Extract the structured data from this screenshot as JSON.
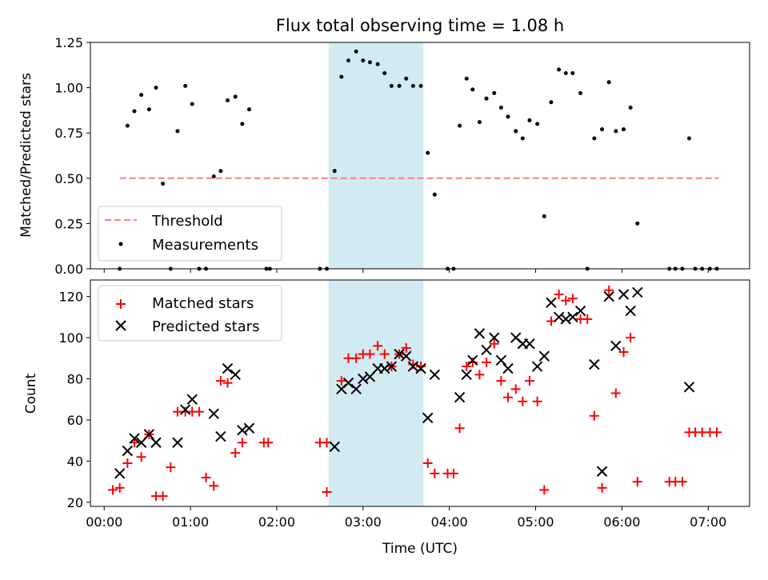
{
  "title": "Flux total observing time = 1.08 h",
  "shaded_region": {
    "x_start_h": 2.6,
    "x_end_h": 3.7,
    "color": "#add8e6"
  },
  "chart_data": [
    {
      "type": "scatter",
      "ylabel": "Matched/Predicted stars",
      "ylim": [
        0,
        1.25
      ],
      "xlim_h": [
        -0.16,
        7.48
      ],
      "yticks": [
        "0.00",
        "0.25",
        "0.50",
        "0.75",
        "1.00",
        "1.25"
      ],
      "legend": {
        "placement": "lower-left",
        "entries": [
          "Threshold",
          "Measurements"
        ]
      },
      "threshold": {
        "name": "Threshold",
        "y": 0.5,
        "x_from_h": 0.18,
        "x_to_h": 7.12,
        "color": "#ff7f7f"
      },
      "series": [
        {
          "name": "Measurements",
          "color": "#000000",
          "points": [
            [
              0.18,
              0
            ],
            [
              0.27,
              0.79
            ],
            [
              0.35,
              0.87
            ],
            [
              0.43,
              0.96
            ],
            [
              0.52,
              0.88
            ],
            [
              0.6,
              1.0
            ],
            [
              0.68,
              0.47
            ],
            [
              0.77,
              0
            ],
            [
              0.85,
              0.76
            ],
            [
              0.94,
              1.01
            ],
            [
              1.02,
              0.91
            ],
            [
              1.1,
              0
            ],
            [
              1.18,
              0
            ],
            [
              1.27,
              0.51
            ],
            [
              1.35,
              0.54
            ],
            [
              1.43,
              0.93
            ],
            [
              1.52,
              0.95
            ],
            [
              1.6,
              0.8
            ],
            [
              1.68,
              0.88
            ],
            [
              1.88,
              0
            ],
            [
              1.92,
              0
            ],
            [
              2.5,
              0
            ],
            [
              2.58,
              0
            ],
            [
              2.67,
              0.54
            ],
            [
              2.75,
              1.06
            ],
            [
              2.83,
              1.15
            ],
            [
              2.92,
              1.2
            ],
            [
              3.0,
              1.15
            ],
            [
              3.08,
              1.14
            ],
            [
              3.17,
              1.13
            ],
            [
              3.25,
              1.08
            ],
            [
              3.33,
              1.01
            ],
            [
              3.42,
              1.01
            ],
            [
              3.5,
              1.05
            ],
            [
              3.58,
              1.01
            ],
            [
              3.67,
              1.01
            ],
            [
              3.75,
              0.64
            ],
            [
              3.83,
              0.41
            ],
            [
              3.98,
              0
            ],
            [
              4.05,
              0
            ],
            [
              4.12,
              0.79
            ],
            [
              4.2,
              1.05
            ],
            [
              4.27,
              0.99
            ],
            [
              4.35,
              0.81
            ],
            [
              4.43,
              0.94
            ],
            [
              4.52,
              0.97
            ],
            [
              4.6,
              0.89
            ],
            [
              4.68,
              0.84
            ],
            [
              4.77,
              0.76
            ],
            [
              4.85,
              0.72
            ],
            [
              4.93,
              0.82
            ],
            [
              5.02,
              0.8
            ],
            [
              5.1,
              0.29
            ],
            [
              5.18,
              0.92
            ],
            [
              5.27,
              1.1
            ],
            [
              5.35,
              1.08
            ],
            [
              5.43,
              1.08
            ],
            [
              5.52,
              0.97
            ],
            [
              5.6,
              0
            ],
            [
              5.68,
              0.72
            ],
            [
              5.77,
              0.77
            ],
            [
              5.85,
              1.03
            ],
            [
              5.93,
              0.76
            ],
            [
              6.02,
              0.77
            ],
            [
              6.1,
              0.89
            ],
            [
              6.18,
              0.25
            ],
            [
              6.55,
              0
            ],
            [
              6.62,
              0
            ],
            [
              6.7,
              0
            ],
            [
              6.78,
              0.72
            ],
            [
              6.85,
              0
            ],
            [
              6.93,
              0
            ],
            [
              7.02,
              0
            ],
            [
              7.1,
              0
            ]
          ]
        }
      ]
    },
    {
      "type": "scatter",
      "xlabel": "Time (UTC)",
      "ylabel": "Count",
      "ylim": [
        18,
        128
      ],
      "xlim_h": [
        -0.16,
        7.48
      ],
      "yticks": [
        "20",
        "40",
        "60",
        "80",
        "100",
        "120"
      ],
      "xticks": [
        "00:00",
        "01:00",
        "02:00",
        "03:00",
        "04:00",
        "05:00",
        "06:00",
        "07:00"
      ],
      "legend": {
        "placement": "upper-left",
        "entries": [
          "Matched stars",
          "Predicted stars"
        ]
      },
      "series": [
        {
          "name": "Matched stars",
          "marker": "plus",
          "color": "#ff0000",
          "points": [
            [
              0.1,
              26
            ],
            [
              0.18,
              27
            ],
            [
              0.27,
              39
            ],
            [
              0.35,
              49
            ],
            [
              0.43,
              42
            ],
            [
              0.52,
              53
            ],
            [
              0.6,
              23
            ],
            [
              0.68,
              23
            ],
            [
              0.77,
              37
            ],
            [
              0.85,
              64
            ],
            [
              0.94,
              64
            ],
            [
              1.02,
              64
            ],
            [
              1.1,
              64
            ],
            [
              1.18,
              32
            ],
            [
              1.27,
              28
            ],
            [
              1.35,
              79
            ],
            [
              1.43,
              78
            ],
            [
              1.52,
              44
            ],
            [
              1.6,
              49
            ],
            [
              1.85,
              49
            ],
            [
              1.9,
              49
            ],
            [
              2.5,
              49
            ],
            [
              2.58,
              49
            ],
            [
              2.58,
              25
            ],
            [
              2.75,
              79
            ],
            [
              2.83,
              90
            ],
            [
              2.92,
              90
            ],
            [
              3.0,
              92
            ],
            [
              3.08,
              92
            ],
            [
              3.17,
              96
            ],
            [
              3.25,
              92
            ],
            [
              3.33,
              86
            ],
            [
              3.42,
              92
            ],
            [
              3.5,
              95
            ],
            [
              3.58,
              87
            ],
            [
              3.67,
              86
            ],
            [
              3.75,
              39
            ],
            [
              3.83,
              34
            ],
            [
              3.98,
              34
            ],
            [
              4.05,
              34
            ],
            [
              4.12,
              56
            ],
            [
              4.2,
              86
            ],
            [
              4.27,
              88
            ],
            [
              4.35,
              82
            ],
            [
              4.43,
              88
            ],
            [
              4.52,
              97
            ],
            [
              4.6,
              79
            ],
            [
              4.68,
              71
            ],
            [
              4.77,
              75
            ],
            [
              4.85,
              69
            ],
            [
              4.93,
              79
            ],
            [
              5.02,
              69
            ],
            [
              5.1,
              26
            ],
            [
              5.18,
              108
            ],
            [
              5.27,
              121
            ],
            [
              5.35,
              118
            ],
            [
              5.43,
              119
            ],
            [
              5.52,
              109
            ],
            [
              5.6,
              109
            ],
            [
              5.68,
              62
            ],
            [
              5.77,
              27
            ],
            [
              5.85,
              123
            ],
            [
              5.93,
              73
            ],
            [
              6.02,
              93
            ],
            [
              6.1,
              100
            ],
            [
              6.18,
              30
            ],
            [
              6.55,
              30
            ],
            [
              6.62,
              30
            ],
            [
              6.7,
              30
            ],
            [
              6.78,
              54
            ],
            [
              6.85,
              54
            ],
            [
              6.93,
              54
            ],
            [
              7.02,
              54
            ],
            [
              7.1,
              54
            ]
          ]
        },
        {
          "name": "Predicted stars",
          "marker": "x",
          "color": "#000000",
          "points": [
            [
              0.18,
              34
            ],
            [
              0.27,
              45
            ],
            [
              0.35,
              51
            ],
            [
              0.43,
              49
            ],
            [
              0.52,
              53
            ],
            [
              0.6,
              49
            ],
            [
              0.85,
              49
            ],
            [
              0.94,
              65
            ],
            [
              1.02,
              70
            ],
            [
              1.27,
              63
            ],
            [
              1.35,
              52
            ],
            [
              1.43,
              85
            ],
            [
              1.52,
              82
            ],
            [
              1.6,
              55
            ],
            [
              1.68,
              56
            ],
            [
              2.67,
              47
            ],
            [
              2.75,
              75
            ],
            [
              2.83,
              78
            ],
            [
              2.92,
              75
            ],
            [
              3.0,
              80
            ],
            [
              3.08,
              81
            ],
            [
              3.17,
              85
            ],
            [
              3.25,
              85
            ],
            [
              3.33,
              86
            ],
            [
              3.42,
              92
            ],
            [
              3.5,
              91
            ],
            [
              3.58,
              86
            ],
            [
              3.67,
              85
            ],
            [
              3.75,
              61
            ],
            [
              3.83,
              82
            ],
            [
              4.12,
              71
            ],
            [
              4.2,
              82
            ],
            [
              4.27,
              89
            ],
            [
              4.35,
              102
            ],
            [
              4.43,
              94
            ],
            [
              4.52,
              100
            ],
            [
              4.6,
              89
            ],
            [
              4.68,
              85
            ],
            [
              4.77,
              100
            ],
            [
              4.85,
              97
            ],
            [
              4.93,
              97
            ],
            [
              5.02,
              86
            ],
            [
              5.1,
              91
            ],
            [
              5.18,
              117
            ],
            [
              5.27,
              110
            ],
            [
              5.35,
              109
            ],
            [
              5.43,
              110
            ],
            [
              5.52,
              113
            ],
            [
              5.68,
              87
            ],
            [
              5.77,
              35
            ],
            [
              5.85,
              120
            ],
            [
              5.93,
              96
            ],
            [
              6.02,
              121
            ],
            [
              6.1,
              113
            ],
            [
              6.18,
              122
            ],
            [
              6.78,
              76
            ]
          ]
        }
      ]
    }
  ]
}
